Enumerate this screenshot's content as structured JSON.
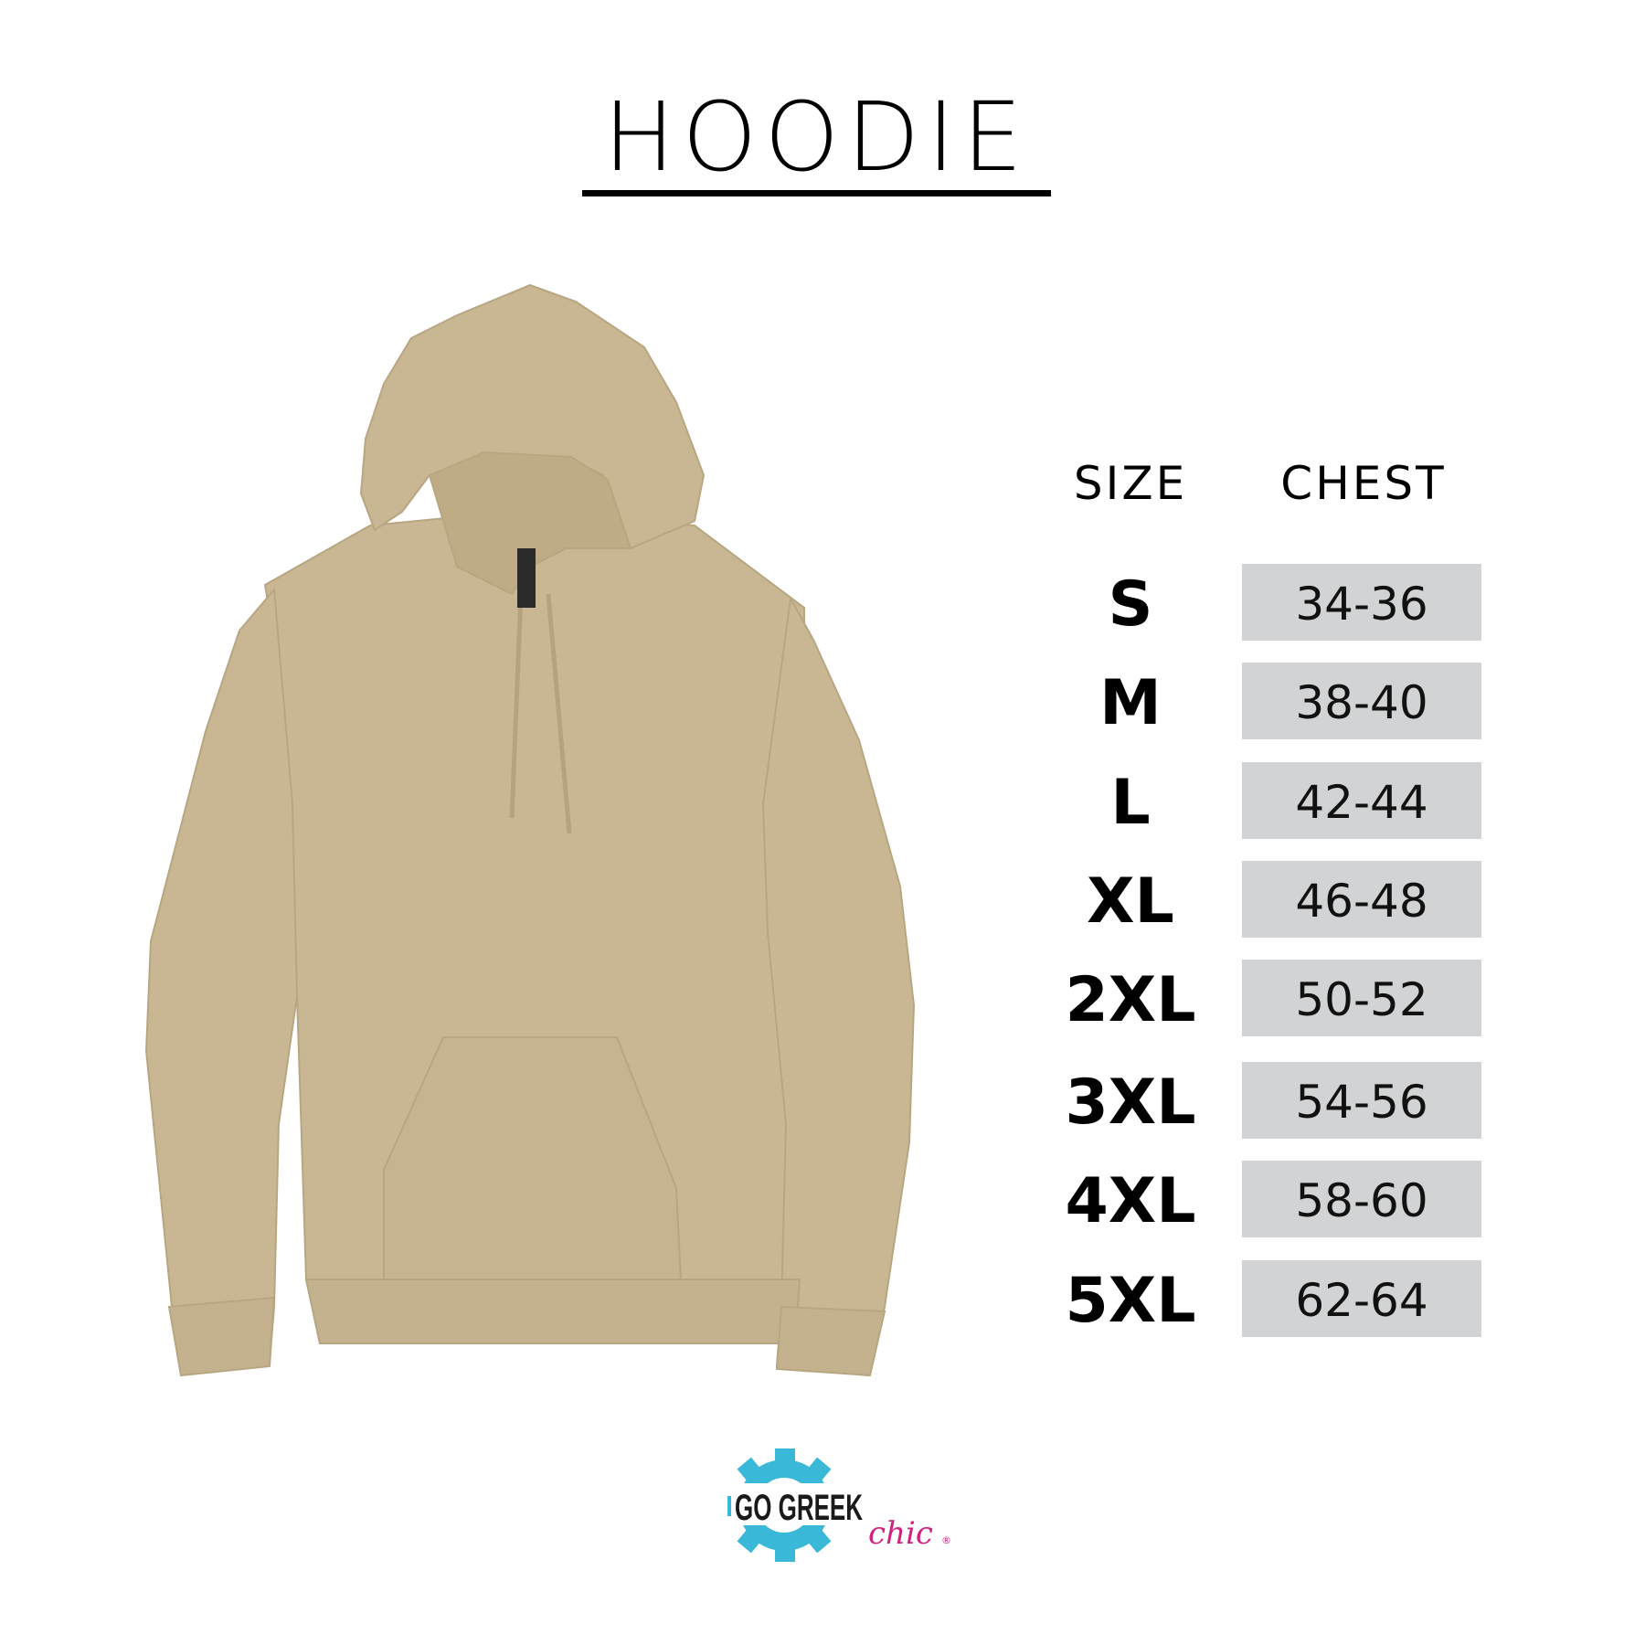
{
  "title": "HOODIE",
  "table": {
    "headers": {
      "size": "SIZE",
      "chest": "CHEST"
    },
    "rows": [
      {
        "size": "S",
        "chest": "34-36"
      },
      {
        "size": "M",
        "chest": "38-40"
      },
      {
        "size": "L",
        "chest": "42-44"
      },
      {
        "size": "XL",
        "chest": "46-48"
      },
      {
        "size": "2XL",
        "chest": "50-52"
      },
      {
        "size": "3XL",
        "chest": "54-56"
      },
      {
        "size": "4XL",
        "chest": "58-60"
      },
      {
        "size": "5XL",
        "chest": "62-64"
      }
    ]
  },
  "logo": {
    "main": "GO GREEK",
    "script": "chic",
    "mark": "®"
  },
  "colors": {
    "hoodie": "#c9b793",
    "cell_bg": "#d1d3d4",
    "logo_gear": "#3ab8d8",
    "logo_script": "#d0227f"
  }
}
